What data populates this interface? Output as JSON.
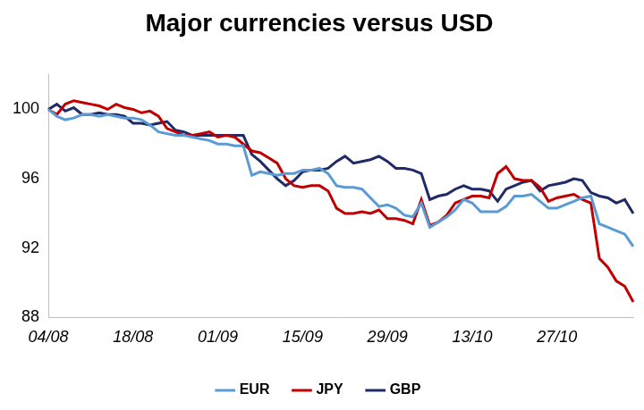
{
  "chart_data": {
    "type": "line",
    "title": "Major currencies versus USD",
    "categories": [
      "04/08",
      null,
      null,
      null,
      null,
      null,
      null,
      null,
      null,
      null,
      "18/08",
      null,
      null,
      null,
      null,
      null,
      null,
      null,
      null,
      null,
      "01/09",
      null,
      null,
      null,
      null,
      null,
      null,
      null,
      null,
      null,
      "15/09",
      null,
      null,
      null,
      null,
      null,
      null,
      null,
      null,
      null,
      "29/09",
      null,
      null,
      null,
      null,
      null,
      null,
      null,
      null,
      null,
      "13/10",
      null,
      null,
      null,
      null,
      null,
      null,
      null,
      null,
      null,
      "27/10",
      null,
      null,
      null,
      null,
      null,
      null,
      null,
      null,
      null
    ],
    "series": [
      {
        "name": "EUR",
        "color": "#5b9bd5",
        "values": [
          100,
          99.6,
          99.4,
          99.5,
          99.7,
          99.7,
          99.6,
          99.7,
          99.6,
          99.5,
          99.5,
          99.4,
          99.1,
          98.7,
          98.6,
          98.5,
          98.5,
          98.4,
          98.3,
          98.2,
          98.0,
          98.0,
          97.9,
          97.9,
          96.2,
          96.4,
          96.3,
          96.2,
          96.3,
          96.3,
          96.5,
          96.5,
          96.6,
          96.3,
          95.6,
          95.5,
          95.5,
          95.4,
          94.9,
          94.4,
          94.5,
          94.3,
          93.9,
          93.8,
          94.6,
          93.2,
          93.5,
          93.8,
          94.2,
          94.8,
          94.6,
          94.1,
          94.1,
          94.1,
          94.4,
          95.0,
          95.0,
          95.1,
          94.7,
          94.3,
          94.3,
          94.5,
          94.7,
          94.9,
          95.0,
          93.4,
          93.2,
          93.0,
          92.8,
          92.1
        ]
      },
      {
        "name": "JPY",
        "color": "#c00000",
        "values": [
          100,
          99.7,
          100.3,
          100.5,
          100.4,
          100.3,
          100.2,
          100.0,
          100.3,
          100.1,
          100.0,
          99.8,
          99.9,
          99.6,
          98.9,
          98.7,
          98.5,
          98.5,
          98.6,
          98.7,
          98.4,
          98.5,
          98.4,
          98.0,
          97.6,
          97.5,
          97.2,
          96.9,
          96.0,
          95.6,
          95.5,
          95.6,
          95.6,
          95.3,
          94.3,
          94.0,
          94.0,
          94.1,
          94.0,
          94.2,
          93.7,
          93.7,
          93.6,
          93.4,
          94.8,
          93.3,
          93.5,
          93.9,
          94.6,
          94.8,
          95.0,
          95.0,
          94.9,
          96.3,
          96.7,
          96.0,
          95.9,
          95.9,
          95.5,
          94.7,
          94.9,
          95.0,
          95.1,
          94.8,
          94.6,
          91.4,
          90.9,
          90.1,
          89.8,
          88.9
        ]
      },
      {
        "name": "GBP",
        "color": "#1f2a66",
        "values": [
          100,
          100.3,
          99.9,
          100.1,
          99.7,
          99.7,
          99.8,
          99.7,
          99.7,
          99.6,
          99.2,
          99.2,
          99.1,
          99.2,
          99.3,
          98.8,
          98.7,
          98.5,
          98.5,
          98.5,
          98.5,
          98.5,
          98.5,
          98.5,
          97.4,
          97.0,
          96.5,
          96.0,
          95.6,
          95.9,
          96.4,
          96.5,
          96.5,
          96.6,
          97.0,
          97.3,
          96.9,
          97.0,
          97.1,
          97.3,
          97.0,
          96.6,
          96.6,
          96.5,
          96.3,
          94.8,
          95.0,
          95.1,
          95.4,
          95.6,
          95.4,
          95.4,
          95.3,
          94.7,
          95.4,
          95.6,
          95.8,
          95.9,
          95.3,
          95.6,
          95.7,
          95.8,
          96.0,
          95.9,
          95.2,
          95.0,
          94.9,
          94.6,
          94.8,
          94.0
        ]
      }
    ],
    "ylim": [
      88,
      102
    ],
    "yticks": [
      88,
      92,
      96,
      100
    ],
    "grid": false,
    "legend": "bottom"
  }
}
